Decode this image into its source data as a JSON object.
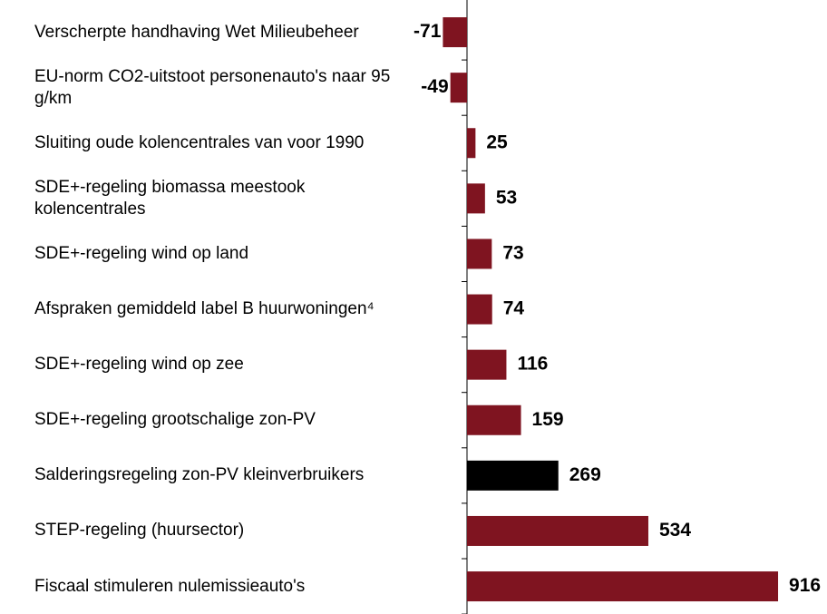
{
  "chart_data": {
    "type": "bar",
    "orientation": "horizontal",
    "categories": [
      "Verscherpte handhaving Wet Milieubeheer",
      "EU-norm CO2-uitstoot personenauto's naar 95 g/km",
      "Sluiting oude kolencentrales van voor 1990",
      "SDE+-regeling biomassa meestook kolencentrales",
      "SDE+-regeling wind op land",
      "Afspraken gemiddeld label B huurwoningen⁴",
      "SDE+-regeling wind op zee",
      "SDE+-regeling grootschalige zon-PV",
      "Salderingsregeling zon-PV kleinverbruikers",
      "STEP-regeling (huursector)",
      "Fiscaal stimuleren nulemissieauto's"
    ],
    "values": [
      -71,
      -49,
      25,
      53,
      73,
      74,
      116,
      159,
      269,
      534,
      916
    ],
    "colors": [
      "#7f1420",
      "#7f1420",
      "#7f1420",
      "#7f1420",
      "#7f1420",
      "#7f1420",
      "#7f1420",
      "#7f1420",
      "#000000",
      "#7f1420",
      "#7f1420"
    ],
    "xlim": [
      -100,
      1000
    ]
  }
}
